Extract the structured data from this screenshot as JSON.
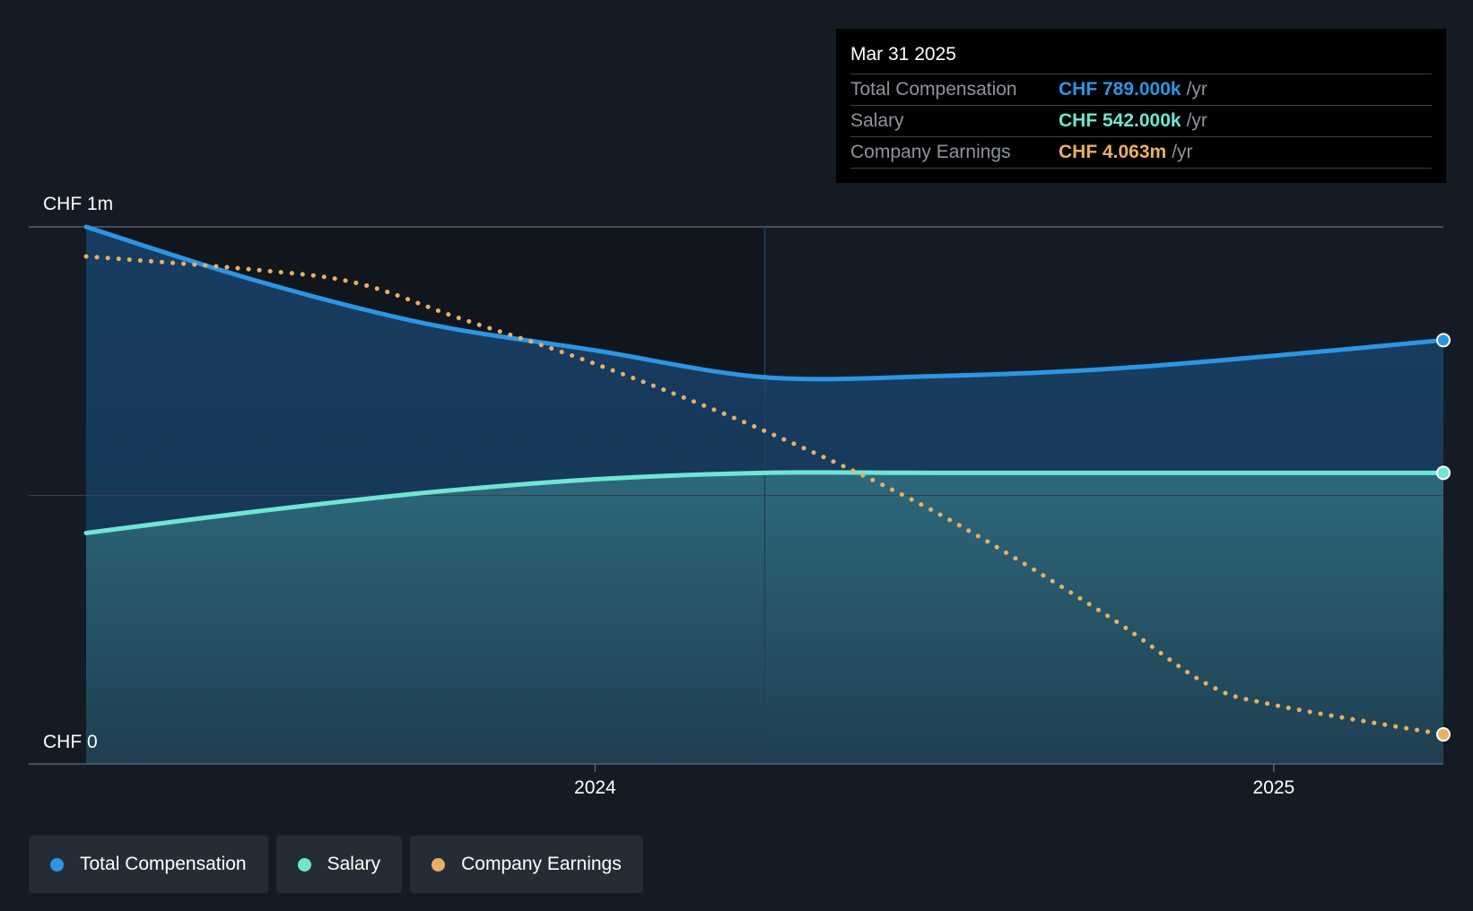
{
  "colors": {
    "total": "#2a96e5",
    "salary": "#6ee6d3",
    "earnings": "#e9b060",
    "background": "#151b24"
  },
  "tooltip": {
    "date": "Mar 31 2025",
    "rows": [
      {
        "label": "Total Compensation",
        "value": "CHF 789.000k",
        "unit": "/yr"
      },
      {
        "label": "Salary",
        "value": "CHF 542.000k",
        "unit": "/yr"
      },
      {
        "label": "Company Earnings",
        "value": "CHF 4.063m",
        "unit": "/yr"
      }
    ]
  },
  "legend": [
    {
      "label": "Total Compensation"
    },
    {
      "label": "Salary"
    },
    {
      "label": "Company Earnings"
    }
  ],
  "chart_data": {
    "type": "area",
    "title": "",
    "y_axis": {
      "top_label": "CHF 1m",
      "bottom_label": "CHF 0",
      "min": 0,
      "max": 1000
    },
    "x_ticks": [
      {
        "label": "2024",
        "x": 2024.0
      },
      {
        "label": "2025",
        "x": 2025.0
      }
    ],
    "x_range": [
      2023.25,
      2025.25
    ],
    "highlight_start": 2024.25,
    "series": [
      {
        "name": "Total Compensation",
        "unit": "CHF k",
        "style": "solid-area",
        "points": [
          [
            2023.25,
            1000
          ],
          [
            2023.5,
            900
          ],
          [
            2023.75,
            820
          ],
          [
            2024.0,
            770
          ],
          [
            2024.25,
            720
          ],
          [
            2024.5,
            722
          ],
          [
            2024.75,
            735
          ],
          [
            2025.0,
            760
          ],
          [
            2025.25,
            789
          ]
        ]
      },
      {
        "name": "Salary",
        "unit": "CHF k",
        "style": "solid-area",
        "points": [
          [
            2023.25,
            430
          ],
          [
            2023.5,
            470
          ],
          [
            2023.75,
            505
          ],
          [
            2024.0,
            530
          ],
          [
            2024.25,
            542
          ],
          [
            2024.5,
            542
          ],
          [
            2024.75,
            542
          ],
          [
            2025.0,
            542
          ],
          [
            2025.25,
            542
          ]
        ]
      },
      {
        "name": "Company Earnings",
        "style": "dotted",
        "scaled_position": [
          [
            2023.25,
            945
          ],
          [
            2023.5,
            920
          ],
          [
            2023.65,
            895
          ],
          [
            2023.8,
            830
          ],
          [
            2024.0,
            745
          ],
          [
            2024.25,
            620
          ],
          [
            2024.5,
            470
          ],
          [
            2024.75,
            280
          ],
          [
            2024.9,
            150
          ],
          [
            2025.0,
            110
          ],
          [
            2025.25,
            55
          ]
        ]
      }
    ]
  }
}
